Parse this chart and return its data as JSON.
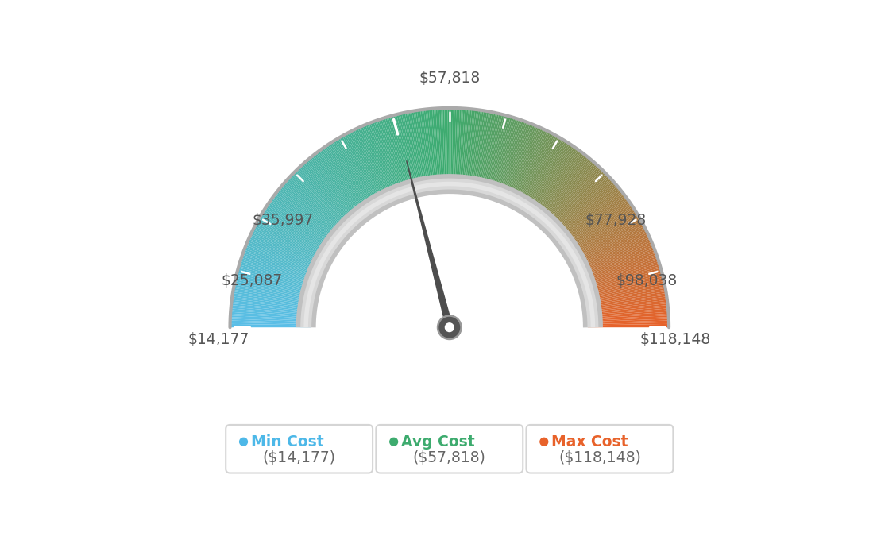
{
  "min_val": 14177,
  "max_val": 118148,
  "avg_val": 57818,
  "tick_labels": [
    "$14,177",
    "$25,087",
    "$35,997",
    "$57,818",
    "$77,928",
    "$98,038",
    "$118,148"
  ],
  "tick_values": [
    14177,
    25087,
    35997,
    57818,
    77928,
    98038,
    118148
  ],
  "legend_labels": [
    "Min Cost",
    "Avg Cost",
    "Max Cost"
  ],
  "legend_values": [
    "($14,177)",
    "($57,818)",
    "($118,148)"
  ],
  "legend_colors": [
    "#4db8e8",
    "#3dab6e",
    "#e8622a"
  ],
  "background_color": "#ffffff",
  "needle_color": "#4d4d4d",
  "needle_hub_outer_color": "#666666",
  "needle_hub_inner_color": "#555555",
  "outer_ring_color": "#bbbbbb",
  "inner_ring_color": "#cccccc",
  "tick_color": "#ffffff",
  "label_color": "#555555",
  "figsize": [
    11.04,
    6.9
  ],
  "dpi": 100,
  "gauge_blue": [
    91,
    191,
    232
  ],
  "gauge_green": [
    61,
    171,
    110
  ],
  "gauge_orange": [
    232,
    98,
    42
  ]
}
